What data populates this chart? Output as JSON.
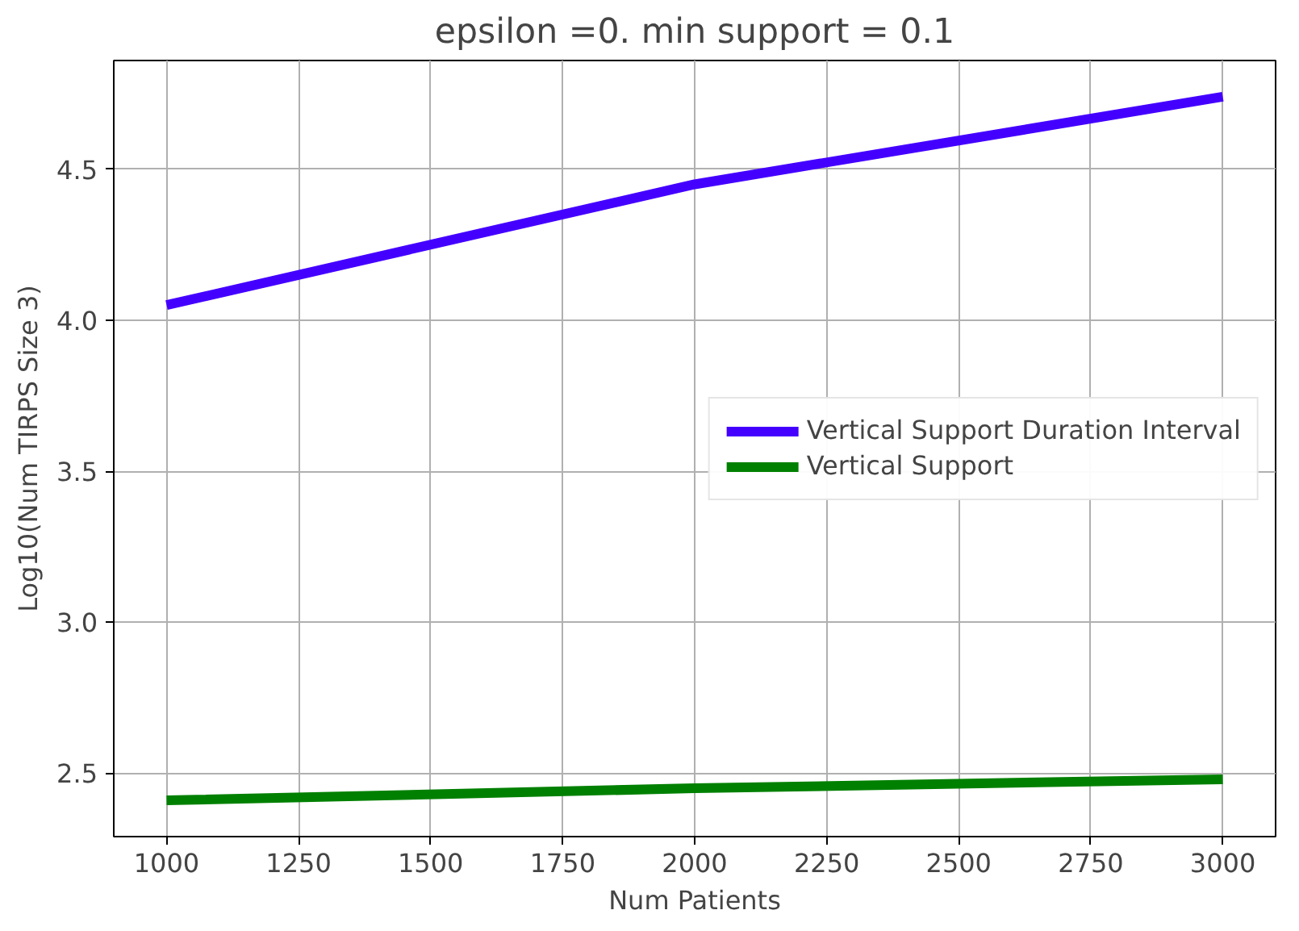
{
  "chart_data": {
    "type": "line",
    "title": "epsilon =0. min support = 0.1",
    "xlabel": "Num Patients",
    "ylabel": "Log10(Num TIRPS Size 3)",
    "x": [
      1000,
      2000,
      3000
    ],
    "series": [
      {
        "name": "Vertical Support Duration Interval",
        "color": "#4400ff",
        "values": [
          4.05,
          4.45,
          4.74
        ]
      },
      {
        "name": "Vertical Support",
        "color": "#008000",
        "values": [
          2.41,
          2.45,
          2.48
        ]
      }
    ],
    "xlim": [
      900,
      3100
    ],
    "ylim": [
      2.29,
      4.86
    ],
    "xticks": [
      1000,
      1250,
      1500,
      1750,
      2000,
      2250,
      2500,
      2750,
      3000
    ],
    "yticks": [
      {
        "value": 2.5,
        "label": "2.5"
      },
      {
        "value": 3.0,
        "label": "3.0"
      },
      {
        "value": 3.5,
        "label": "3.5"
      },
      {
        "value": 4.0,
        "label": "4.0"
      },
      {
        "value": 4.5,
        "label": "4.5"
      }
    ],
    "grid": true,
    "legend": "right",
    "marker": "none",
    "line_style": "solid"
  }
}
